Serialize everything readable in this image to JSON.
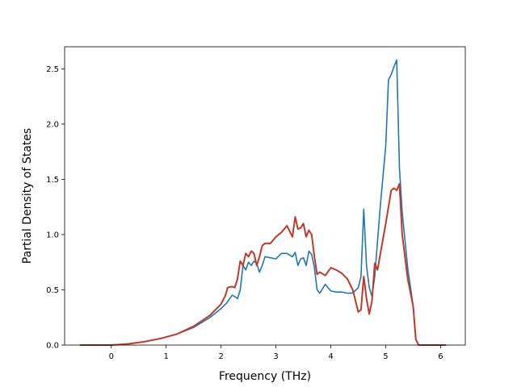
{
  "chart_data": {
    "type": "line",
    "title": "",
    "xlabel": "Frequency (THz)",
    "ylabel": "Partial Density of States",
    "xlim": [
      -0.85,
      6.45
    ],
    "ylim": [
      0,
      2.7
    ],
    "xticks": [
      0,
      1,
      2,
      3,
      4,
      5,
      6
    ],
    "yticks": [
      0.0,
      0.5,
      1.0,
      1.5,
      2.0,
      2.5
    ],
    "xtick_labels": [
      "0",
      "1",
      "2",
      "3",
      "4",
      "5",
      "6"
    ],
    "ytick_labels": [
      "0.0",
      "0.5",
      "1.0",
      "1.5",
      "2.0",
      "2.5"
    ],
    "grid": false,
    "legend": "none",
    "series": [
      {
        "color": "#1f77b4",
        "x": [
          -0.57,
          0.0,
          0.3,
          0.6,
          0.9,
          1.2,
          1.5,
          1.8,
          2.0,
          2.1,
          2.2,
          2.25,
          2.3,
          2.35,
          2.4,
          2.45,
          2.5,
          2.55,
          2.6,
          2.65,
          2.7,
          2.75,
          2.8,
          2.9,
          3.0,
          3.1,
          3.2,
          3.3,
          3.35,
          3.4,
          3.45,
          3.5,
          3.55,
          3.6,
          3.65,
          3.7,
          3.75,
          3.8,
          3.9,
          4.0,
          4.1,
          4.2,
          4.3,
          4.4,
          4.5,
          4.55,
          4.6,
          4.65,
          4.7,
          4.75,
          4.8,
          4.9,
          5.0,
          5.05,
          5.1,
          5.15,
          5.2,
          5.25,
          5.3,
          5.4,
          5.5,
          5.55,
          5.6,
          6.1
        ],
        "y": [
          0.0,
          0.0,
          0.01,
          0.03,
          0.06,
          0.1,
          0.16,
          0.25,
          0.33,
          0.38,
          0.45,
          0.44,
          0.42,
          0.5,
          0.72,
          0.68,
          0.75,
          0.72,
          0.76,
          0.74,
          0.66,
          0.72,
          0.8,
          0.79,
          0.78,
          0.83,
          0.83,
          0.8,
          0.84,
          0.72,
          0.78,
          0.79,
          0.72,
          0.85,
          0.82,
          0.7,
          0.5,
          0.47,
          0.55,
          0.49,
          0.48,
          0.48,
          0.47,
          0.47,
          0.52,
          0.62,
          1.23,
          0.72,
          0.52,
          0.44,
          0.62,
          1.25,
          1.8,
          2.4,
          2.45,
          2.52,
          2.58,
          1.6,
          1.2,
          0.7,
          0.35,
          0.05,
          0.0,
          0.0
        ]
      },
      {
        "color": "#c0392b",
        "x": [
          -0.57,
          0.0,
          0.3,
          0.6,
          0.9,
          1.2,
          1.5,
          1.8,
          2.0,
          2.08,
          2.12,
          2.2,
          2.25,
          2.3,
          2.35,
          2.4,
          2.45,
          2.5,
          2.55,
          2.6,
          2.65,
          2.7,
          2.75,
          2.8,
          2.9,
          3.0,
          3.1,
          3.2,
          3.3,
          3.35,
          3.4,
          3.45,
          3.5,
          3.55,
          3.6,
          3.65,
          3.7,
          3.75,
          3.8,
          3.9,
          4.0,
          4.1,
          4.2,
          4.3,
          4.4,
          4.5,
          4.55,
          4.6,
          4.65,
          4.7,
          4.75,
          4.8,
          4.85,
          4.9,
          5.0,
          5.05,
          5.1,
          5.15,
          5.2,
          5.25,
          5.3,
          5.4,
          5.5,
          5.55,
          5.6,
          6.1
        ],
        "y": [
          0.0,
          0.0,
          0.01,
          0.03,
          0.06,
          0.1,
          0.17,
          0.27,
          0.37,
          0.45,
          0.52,
          0.53,
          0.52,
          0.6,
          0.76,
          0.72,
          0.83,
          0.8,
          0.85,
          0.83,
          0.72,
          0.8,
          0.9,
          0.92,
          0.92,
          0.98,
          1.02,
          1.08,
          0.98,
          1.16,
          1.05,
          1.06,
          1.1,
          0.98,
          1.04,
          1.0,
          0.8,
          0.64,
          0.66,
          0.63,
          0.7,
          0.68,
          0.65,
          0.6,
          0.5,
          0.3,
          0.32,
          0.62,
          0.42,
          0.28,
          0.4,
          0.74,
          0.68,
          0.82,
          1.1,
          1.25,
          1.4,
          1.42,
          1.4,
          1.46,
          1.0,
          0.6,
          0.35,
          0.05,
          0.0,
          0.0
        ]
      }
    ]
  }
}
